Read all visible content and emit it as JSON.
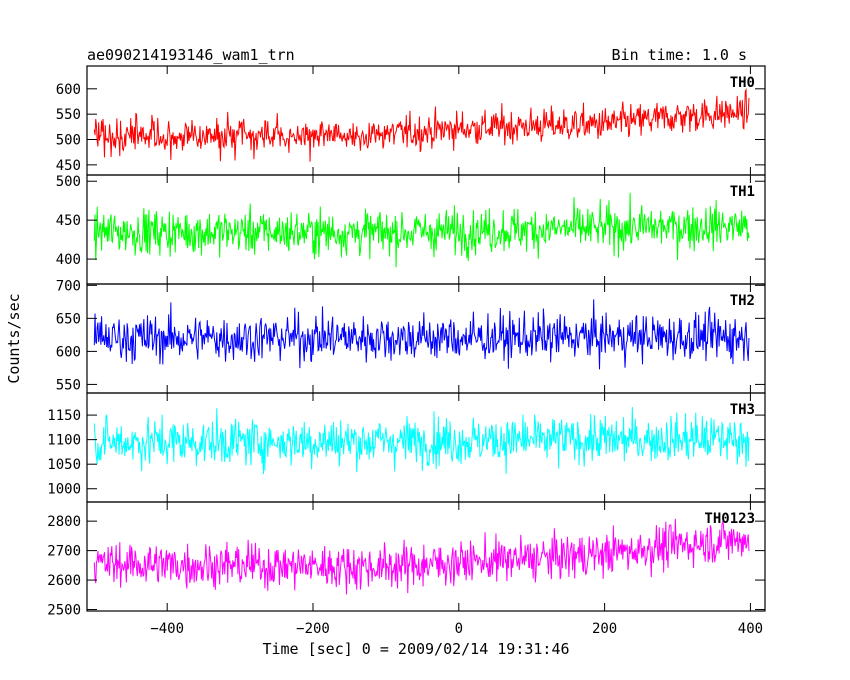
{
  "chart_data": {
    "type": "line",
    "title": "ae090214193146_wam1_trn",
    "subtitle": "Bin time: 1.0 s",
    "xlabel": "Time [sec] 0 = 2009/02/14 19:31:46",
    "ylabel": "Counts/sec",
    "xlim": [
      -510,
      420
    ],
    "x_ticks": [
      -400,
      -200,
      0,
      200,
      400
    ],
    "x_tick_labels": [
      "−400",
      "−200",
      "0",
      "200",
      "400"
    ],
    "bin_time": 1.0,
    "x_start": -500,
    "x_end": 398,
    "panels": [
      {
        "name": "TH0",
        "color": "#ff0000",
        "ylim": [
          430,
          645
        ],
        "y_ticks": [
          450,
          500,
          550,
          600
        ],
        "y_tick_labels": [
          "450",
          "500",
          "550",
          "600"
        ],
        "trend": [
          [
            -500,
            510
          ],
          [
            -300,
            505
          ],
          [
            -100,
            510
          ],
          [
            0,
            522
          ],
          [
            100,
            527
          ],
          [
            200,
            530
          ],
          [
            300,
            545
          ],
          [
            398,
            555
          ]
        ],
        "noise": 24
      },
      {
        "name": "TH1",
        "color": "#00ff00",
        "ylim": [
          368,
          508
        ],
        "y_ticks": [
          400,
          450,
          500
        ],
        "y_tick_labels": [
          "400",
          "450",
          "500"
        ],
        "trend": [
          [
            -500,
            435
          ],
          [
            -300,
            435
          ],
          [
            -100,
            434
          ],
          [
            0,
            436
          ],
          [
            200,
            440
          ],
          [
            398,
            443
          ]
        ],
        "noise": 20
      },
      {
        "name": "TH2",
        "color": "#0000ff",
        "ylim": [
          537,
          702
        ],
        "y_ticks": [
          550,
          600,
          650,
          700
        ],
        "y_tick_labels": [
          "550",
          "600",
          "650",
          "700"
        ],
        "trend": [
          [
            -500,
            620
          ],
          [
            -200,
            621
          ],
          [
            0,
            620
          ],
          [
            200,
            622
          ],
          [
            398,
            622
          ]
        ],
        "noise": 25
      },
      {
        "name": "TH3",
        "color": "#00ffff",
        "ylim": [
          973,
          1195
        ],
        "y_ticks": [
          1000,
          1050,
          1100,
          1150
        ],
        "y_tick_labels": [
          "1000",
          "1050",
          "1100",
          "1150"
        ],
        "trend": [
          [
            -500,
            1095
          ],
          [
            -200,
            1096
          ],
          [
            0,
            1098
          ],
          [
            200,
            1100
          ],
          [
            398,
            1102
          ]
        ],
        "noise": 34
      },
      {
        "name": "TH0123",
        "color": "#ff00ff",
        "ylim": [
          2495,
          2865
        ],
        "y_ticks": [
          2500,
          2600,
          2700,
          2800
        ],
        "y_tick_labels": [
          "2500",
          "2600",
          "2700",
          "2800"
        ],
        "trend": [
          [
            -500,
            2655
          ],
          [
            -300,
            2650
          ],
          [
            -100,
            2645
          ],
          [
            0,
            2660
          ],
          [
            100,
            2672
          ],
          [
            200,
            2690
          ],
          [
            300,
            2720
          ],
          [
            398,
            2740
          ]
        ],
        "noise": 52
      }
    ]
  }
}
